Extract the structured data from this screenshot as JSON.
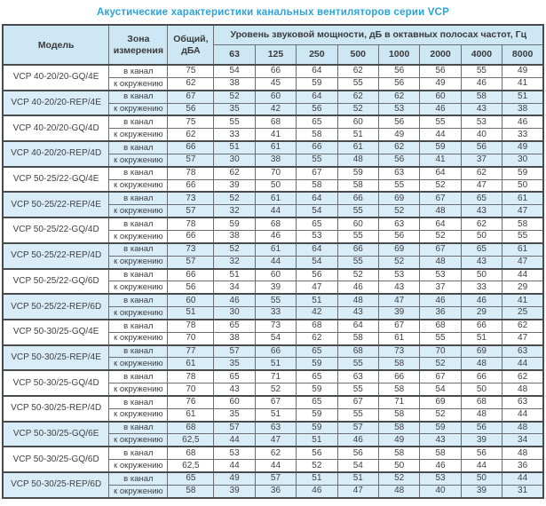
{
  "title": "Акустические характеристики канальных вентиляторов  серии VCP",
  "colors": {
    "accent_title": "#2aa3dc",
    "header_bg": "#cde7f5",
    "shaded_row_bg": "#d9edf8",
    "border": "#6d6e71",
    "text": "#414042"
  },
  "table": {
    "headers": {
      "model": "Модель",
      "zone": "Зона\nизмерения",
      "total": "Общий,\nдБА",
      "spectrum": "Уровень звуковой мощности, дБ в октавных полосах частот, Гц",
      "frequencies": [
        "63",
        "125",
        "250",
        "500",
        "1000",
        "2000",
        "4000",
        "8000"
      ]
    },
    "zone_in_label": "в канал",
    "zone_out_label": "к окружению",
    "models": [
      {
        "name": "VCP 40-20/20-GQ/4E",
        "shaded": false,
        "in_duct": {
          "total": "75",
          "bands": [
            54,
            66,
            64,
            62,
            56,
            56,
            55,
            49
          ]
        },
        "to_env": {
          "total": "62",
          "bands": [
            38,
            45,
            59,
            55,
            56,
            49,
            46,
            41
          ]
        }
      },
      {
        "name": "VCP 40-20/20-REP/4E",
        "shaded": true,
        "in_duct": {
          "total": "67",
          "bands": [
            52,
            60,
            64,
            62,
            62,
            60,
            58,
            51
          ]
        },
        "to_env": {
          "total": "56",
          "bands": [
            35,
            42,
            56,
            52,
            53,
            46,
            43,
            38
          ]
        }
      },
      {
        "name": "VCP 40-20/20-GQ/4D",
        "shaded": false,
        "in_duct": {
          "total": "75",
          "bands": [
            55,
            68,
            65,
            60,
            56,
            55,
            53,
            46
          ]
        },
        "to_env": {
          "total": "62",
          "bands": [
            33,
            41,
            58,
            51,
            49,
            44,
            40,
            33
          ]
        }
      },
      {
        "name": "VCP 40-20/20-REP/4D",
        "shaded": true,
        "in_duct": {
          "total": "66",
          "bands": [
            51,
            61,
            66,
            61,
            62,
            59,
            56,
            49
          ]
        },
        "to_env": {
          "total": "57",
          "bands": [
            30,
            38,
            55,
            48,
            56,
            41,
            37,
            30
          ]
        }
      },
      {
        "name": "VCP 50-25/22-GQ/4E",
        "shaded": false,
        "in_duct": {
          "total": "78",
          "bands": [
            62,
            70,
            67,
            59,
            63,
            64,
            62,
            59
          ]
        },
        "to_env": {
          "total": "66",
          "bands": [
            39,
            50,
            58,
            58,
            55,
            52,
            47,
            50
          ]
        }
      },
      {
        "name": "VCP 50-25/22-REP/4E",
        "shaded": true,
        "in_duct": {
          "total": "73",
          "bands": [
            52,
            61,
            64,
            66,
            69,
            67,
            65,
            61
          ]
        },
        "to_env": {
          "total": "57",
          "bands": [
            32,
            44,
            54,
            55,
            52,
            48,
            43,
            47
          ]
        }
      },
      {
        "name": "VCP 50-25/22-GQ/4D",
        "shaded": false,
        "in_duct": {
          "total": "78",
          "bands": [
            59,
            68,
            65,
            60,
            63,
            64,
            62,
            58
          ]
        },
        "to_env": {
          "total": "66",
          "bands": [
            38,
            46,
            53,
            55,
            56,
            52,
            50,
            55
          ]
        }
      },
      {
        "name": "VCP 50-25/22-REP/4D",
        "shaded": true,
        "in_duct": {
          "total": "73",
          "bands": [
            52,
            61,
            64,
            66,
            69,
            67,
            65,
            61
          ]
        },
        "to_env": {
          "total": "57",
          "bands": [
            32,
            44,
            54,
            55,
            52,
            48,
            43,
            47
          ]
        }
      },
      {
        "name": "VCP 50-25/22-GQ/6D",
        "shaded": false,
        "in_duct": {
          "total": "66",
          "bands": [
            51,
            60,
            56,
            52,
            53,
            53,
            50,
            44
          ]
        },
        "to_env": {
          "total": "56",
          "bands": [
            34,
            39,
            47,
            46,
            43,
            37,
            33,
            29
          ]
        }
      },
      {
        "name": "VCP 50-25/22-REP/6D",
        "shaded": true,
        "in_duct": {
          "total": "60",
          "bands": [
            46,
            55,
            51,
            48,
            47,
            46,
            46,
            41
          ]
        },
        "to_env": {
          "total": "51",
          "bands": [
            30,
            33,
            42,
            43,
            39,
            36,
            29,
            25
          ]
        }
      },
      {
        "name": "VCP 50-30/25-GQ/4E",
        "shaded": false,
        "in_duct": {
          "total": "78",
          "bands": [
            65,
            73,
            68,
            64,
            67,
            68,
            66,
            62
          ]
        },
        "to_env": {
          "total": "70",
          "bands": [
            38,
            54,
            62,
            58,
            61,
            55,
            51,
            47
          ]
        }
      },
      {
        "name": "VCP 50-30/25-REP/4E",
        "shaded": true,
        "in_duct": {
          "total": "77",
          "bands": [
            57,
            66,
            65,
            68,
            73,
            70,
            69,
            63
          ]
        },
        "to_env": {
          "total": "61",
          "bands": [
            35,
            51,
            59,
            55,
            58,
            52,
            48,
            44
          ]
        }
      },
      {
        "name": "VCP 50-30/25-GQ/4D",
        "shaded": false,
        "in_duct": {
          "total": "78",
          "bands": [
            65,
            71,
            65,
            63,
            66,
            67,
            66,
            62
          ]
        },
        "to_env": {
          "total": "70",
          "bands": [
            43,
            52,
            59,
            55,
            58,
            54,
            50,
            48
          ]
        }
      },
      {
        "name": "VCP 50-30/25-REP/4D",
        "shaded": false,
        "in_duct": {
          "total": "76",
          "bands": [
            60,
            67,
            65,
            67,
            71,
            69,
            68,
            63
          ]
        },
        "to_env": {
          "total": "61",
          "bands": [
            35,
            51,
            59,
            55,
            58,
            52,
            48,
            44
          ]
        }
      },
      {
        "name": "VCP 50-30/25-GQ/6E",
        "shaded": true,
        "in_duct": {
          "total": "68",
          "bands": [
            57,
            63,
            59,
            57,
            58,
            59,
            56,
            48
          ]
        },
        "to_env": {
          "total": "62,5",
          "bands": [
            44,
            47,
            51,
            46,
            49,
            43,
            39,
            34
          ]
        }
      },
      {
        "name": "VCP 50-30/25-GQ/6D",
        "shaded": false,
        "in_duct": {
          "total": "68",
          "bands": [
            53,
            62,
            56,
            56,
            58,
            58,
            56,
            48
          ]
        },
        "to_env": {
          "total": "62,5",
          "bands": [
            44,
            44,
            52,
            54,
            50,
            46,
            44,
            36
          ]
        }
      },
      {
        "name": "VCP 50-30/25-REP/6D",
        "shaded": true,
        "in_duct": {
          "total": "65",
          "bands": [
            49,
            57,
            51,
            51,
            52,
            53,
            50,
            44
          ]
        },
        "to_env": {
          "total": "58",
          "bands": [
            39,
            36,
            46,
            47,
            48,
            40,
            39,
            31
          ]
        }
      }
    ]
  }
}
